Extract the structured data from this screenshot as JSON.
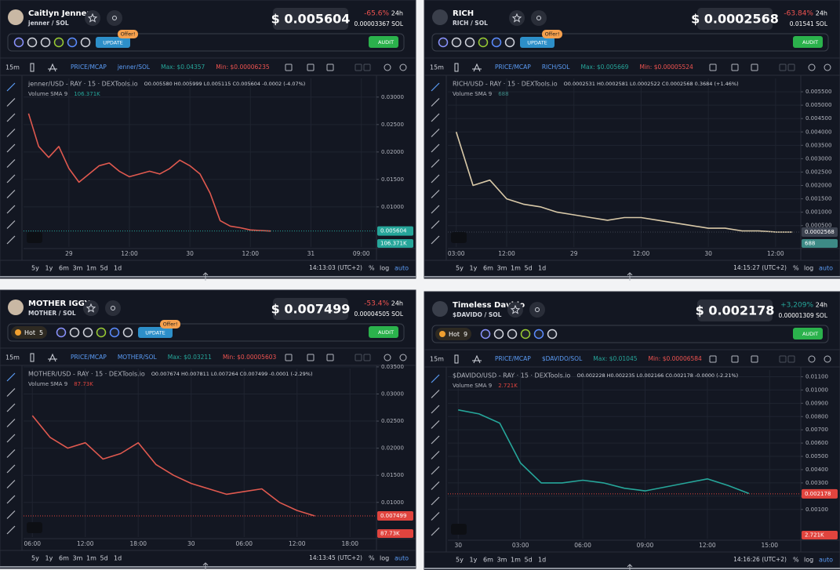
{
  "panels": [
    {
      "header": {
        "name": "Caitlyn Jenner",
        "pair": "jenner / SOL",
        "price": "$ 0.005604",
        "change": "-65.6%",
        "period": "24h",
        "sol_price": "0.00003367 SOL"
      },
      "badges": {
        "update": "UPDATE",
        "offer": "Offer!",
        "audit": "AUDIT"
      },
      "toolbar": {
        "interval": "15m",
        "mode": "PRICE/MCAP",
        "pair": "jenner/SOL",
        "max": "Max: $0.04357",
        "min": "Min: $0.00006235"
      },
      "legend": {
        "title": "jenner/USD - RAY · 15 · DEXTools.io",
        "ohlc": "O0.005580 H0.005999 L0.005115 C0.005604 -0.0002 (-4.07%)",
        "volume": "Volume SMA 9",
        "volume_value": "106.371K"
      },
      "chart_data": {
        "type": "line",
        "color": "#e0594f",
        "categories": [
          null,
          null,
          null,
          null,
          "29",
          null,
          null,
          null,
          null,
          null,
          "12:00",
          null,
          null,
          null,
          null,
          null,
          "30",
          null,
          null,
          null,
          null,
          null,
          "12:00",
          null,
          null,
          null,
          null,
          null,
          "31",
          null,
          null,
          null,
          null,
          "09:00",
          null
        ],
        "values": [
          0.027,
          0.021,
          0.019,
          0.021,
          0.017,
          0.0145,
          0.016,
          0.0175,
          0.018,
          0.0165,
          0.0155,
          0.016,
          0.0165,
          0.016,
          0.017,
          0.0185,
          0.0175,
          0.016,
          0.0125,
          0.0075,
          0.0065,
          0.0062,
          0.0058,
          0.0057,
          0.0056,
          null,
          null,
          null,
          null,
          null,
          null,
          null,
          null,
          null,
          null
        ],
        "ylim": [
          0.0027,
          0.0334
        ],
        "yticks": [
          {
            "value": 0.03,
            "label": "0.03000"
          },
          {
            "value": 0.025,
            "label": "0.02500"
          },
          {
            "value": 0.02,
            "label": "0.02000"
          },
          {
            "value": 0.015,
            "label": "0.01500"
          },
          {
            "value": 0.01,
            "label": "0.01000"
          }
        ],
        "grid": true,
        "price_tag": {
          "value": 0.005604,
          "label": "0.005604"
        },
        "tag_color": "#26a69a",
        "volume_tag": "106.371K",
        "volume_tag_color": "#26a69a"
      },
      "footer": {
        "ranges": [
          "5y",
          "1y",
          "6m",
          "3m",
          "1m",
          "5d",
          "1d"
        ],
        "time": "14:13:03 (UTC+2)",
        "percent": "%",
        "log": "log",
        "auto": "auto"
      }
    },
    {
      "header": {
        "name": "RICH",
        "pair": "RICH / SOL",
        "price": "$ 0.0002568",
        "change": "-63.84%",
        "period": "24h",
        "sol_price": "0.01541 SOL"
      },
      "badges": {
        "update": "UPDATE",
        "offer": "Offer!",
        "audit": "AUDIT"
      },
      "toolbar": {
        "interval": "15m",
        "mode": "PRICE/MCAP",
        "pair": "RICH/SOL",
        "max": "Max: $0.005669",
        "min": "Min: $0.00005524"
      },
      "legend": {
        "title": "RICH/USD - RAY · 15 · DEXTools.io",
        "ohlc": "O0.0002531 H0.0002581 L0.0002522 C0.0002568 0.3684 (+1.46%)",
        "volume": "Volume SMA 9",
        "volume_value": "688"
      },
      "chart_data": {
        "type": "line",
        "color": "#d9c9a8",
        "categories": [
          "03:00",
          null,
          null,
          "12:00",
          null,
          null,
          null,
          "29",
          null,
          null,
          null,
          "12:00",
          null,
          null,
          null,
          "30",
          null,
          null,
          null,
          "12:00",
          null
        ],
        "values": [
          0.004,
          0.002,
          0.0022,
          0.0015,
          0.0013,
          0.0012,
          0.001,
          0.0009,
          0.0008,
          0.0007,
          0.0008,
          0.0008,
          0.0007,
          0.0006,
          0.0005,
          0.0004,
          0.0004,
          0.0003,
          0.0003,
          0.00026,
          0.0002568
        ],
        "ylim": [
          -0.0003,
          0.006
        ],
        "yticks": [
          {
            "value": 0.0055,
            "label": "0.005500"
          },
          {
            "value": 0.005,
            "label": "0.005000"
          },
          {
            "value": 0.0045,
            "label": "0.004500"
          },
          {
            "value": 0.004,
            "label": "0.004000"
          },
          {
            "value": 0.0035,
            "label": "0.003500"
          },
          {
            "value": 0.003,
            "label": "0.003000"
          },
          {
            "value": 0.0025,
            "label": "0.002500"
          },
          {
            "value": 0.002,
            "label": "0.002000"
          },
          {
            "value": 0.0015,
            "label": "0.001500"
          },
          {
            "value": 0.001,
            "label": "0.001000"
          },
          {
            "value": 0.0005,
            "label": "0.000500"
          }
        ],
        "grid": true,
        "price_tag": {
          "value": 0.0002568,
          "label": "0.0002568"
        },
        "tag_color": "#3d4350",
        "volume_tag": "688",
        "volume_tag_color": "#3d8a86"
      },
      "footer": {
        "ranges": [
          "5y",
          "1y",
          "6m",
          "3m",
          "1m",
          "5d",
          "1d"
        ],
        "time": "14:15:27 (UTC+2)",
        "percent": "%",
        "log": "log",
        "auto": "auto"
      }
    },
    {
      "header": {
        "name": "MOTHER IGGY",
        "pair": "MOTHER / SOL",
        "hot": "Hot",
        "hot_rank": "5",
        "price": "$ 0.007499",
        "change": "-53.4%",
        "period": "24h",
        "sol_price": "0.00004505 SOL"
      },
      "badges": {
        "update": "UPDATE",
        "offer": "Offer!",
        "audit": "AUDIT"
      },
      "toolbar": {
        "interval": "15m",
        "mode": "PRICE/MCAP",
        "pair": "MOTHER/SOL",
        "max": "Max: $0.03211",
        "min": "Min: $0.00005603"
      },
      "legend": {
        "title": "MOTHER/USD - RAY · 15 · DEXTools.io",
        "ohlc": "O0.007674 H0.007811 L0.007264 C0.007499 -0.0001 (-2.29%)",
        "volume": "Volume SMA 9",
        "volume_value": "87.73K"
      },
      "chart_data": {
        "type": "line",
        "color": "#e0594f",
        "categories": [
          "06:00",
          null,
          null,
          "12:00",
          null,
          null,
          "18:00",
          null,
          null,
          "30",
          null,
          null,
          "06:00",
          null,
          null,
          "12:00",
          null,
          null,
          "18:00",
          null
        ],
        "values": [
          0.026,
          0.022,
          0.02,
          0.021,
          0.018,
          0.019,
          0.021,
          0.017,
          0.015,
          0.0135,
          0.0125,
          0.0115,
          0.012,
          0.0125,
          0.01,
          0.0085,
          0.0075,
          null,
          null,
          null
        ],
        "ylim": [
          0.0036,
          0.0347
        ],
        "yticks": [
          {
            "value": 0.035,
            "label": "0.03500"
          },
          {
            "value": 0.03,
            "label": "0.03000"
          },
          {
            "value": 0.025,
            "label": "0.02500"
          },
          {
            "value": 0.02,
            "label": "0.02000"
          },
          {
            "value": 0.015,
            "label": "0.01500"
          },
          {
            "value": 0.01,
            "label": "0.01000"
          }
        ],
        "grid": true,
        "price_tag": {
          "value": 0.007499,
          "label": "0.007499"
        },
        "tag_color": "#e0443e",
        "volume_tag": "87.73K",
        "volume_tag_color": "#e0443e"
      },
      "footer": {
        "ranges": [
          "5y",
          "1y",
          "6m",
          "3m",
          "1m",
          "5d",
          "1d"
        ],
        "time": "14:13:45 (UTC+2)",
        "percent": "%",
        "log": "log",
        "auto": "auto"
      }
    },
    {
      "header": {
        "name": "Timeless Davido",
        "pair": "$DAVIDO / SOL",
        "hot": "Hot",
        "hot_rank": "9",
        "price": "$ 0.002178",
        "change": "+3,209%",
        "period": "24h",
        "sol_price": "0.00001309 SOL"
      },
      "badges": {
        "audit": "AUDIT"
      },
      "toolbar": {
        "interval": "15m",
        "mode": "PRICE/MCAP",
        "pair": "$DAVIDO/SOL",
        "max": "Max: $0.01045",
        "min": "Min: $0.00006584"
      },
      "legend": {
        "title": "$DAVIDO/USD - RAY · 15 · DEXTools.io",
        "ohlc": "O0.002228 H0.002235 L0.002166 C0.002178 -0.0000 (-2.21%)",
        "volume": "Volume SMA 9",
        "volume_value": "2.721K"
      },
      "chart_data": {
        "type": "line",
        "color": "#26a69a",
        "categories": [
          "30",
          null,
          null,
          "03:00",
          null,
          null,
          "06:00",
          null,
          null,
          "09:00",
          null,
          null,
          "12:00",
          null,
          null,
          "15:00",
          null
        ],
        "values": [
          0.0085,
          0.0082,
          0.0075,
          0.0045,
          0.003,
          0.003,
          0.0032,
          0.003,
          0.0026,
          0.0024,
          0.0027,
          0.003,
          0.0033,
          0.0028,
          0.0022,
          null,
          null
        ],
        "ylim": [
          -0.0012,
          0.0115
        ],
        "yticks": [
          {
            "value": 0.011,
            "label": "0.01100"
          },
          {
            "value": 0.01,
            "label": "0.01000"
          },
          {
            "value": 0.009,
            "label": "0.00900"
          },
          {
            "value": 0.008,
            "label": "0.00800"
          },
          {
            "value": 0.007,
            "label": "0.00700"
          },
          {
            "value": 0.006,
            "label": "0.00600"
          },
          {
            "value": 0.005,
            "label": "0.00500"
          },
          {
            "value": 0.004,
            "label": "0.00400"
          },
          {
            "value": 0.003,
            "label": "0.00300"
          },
          {
            "value": 0.002,
            "label": "0.00200"
          },
          {
            "value": 0.001,
            "label": "0.00100"
          }
        ],
        "grid": true,
        "price_tag": {
          "value": 0.002178,
          "label": "0.002178"
        },
        "tag_color": "#e0443e",
        "volume_tag": "2.721K",
        "volume_tag_color": "#e0443e"
      },
      "footer": {
        "ranges": [
          "5y",
          "1y",
          "6m",
          "3m",
          "1m",
          "5d",
          "1d"
        ],
        "time": "14:16:26 (UTC+2)",
        "percent": "%",
        "log": "log",
        "auto": "auto"
      }
    }
  ]
}
